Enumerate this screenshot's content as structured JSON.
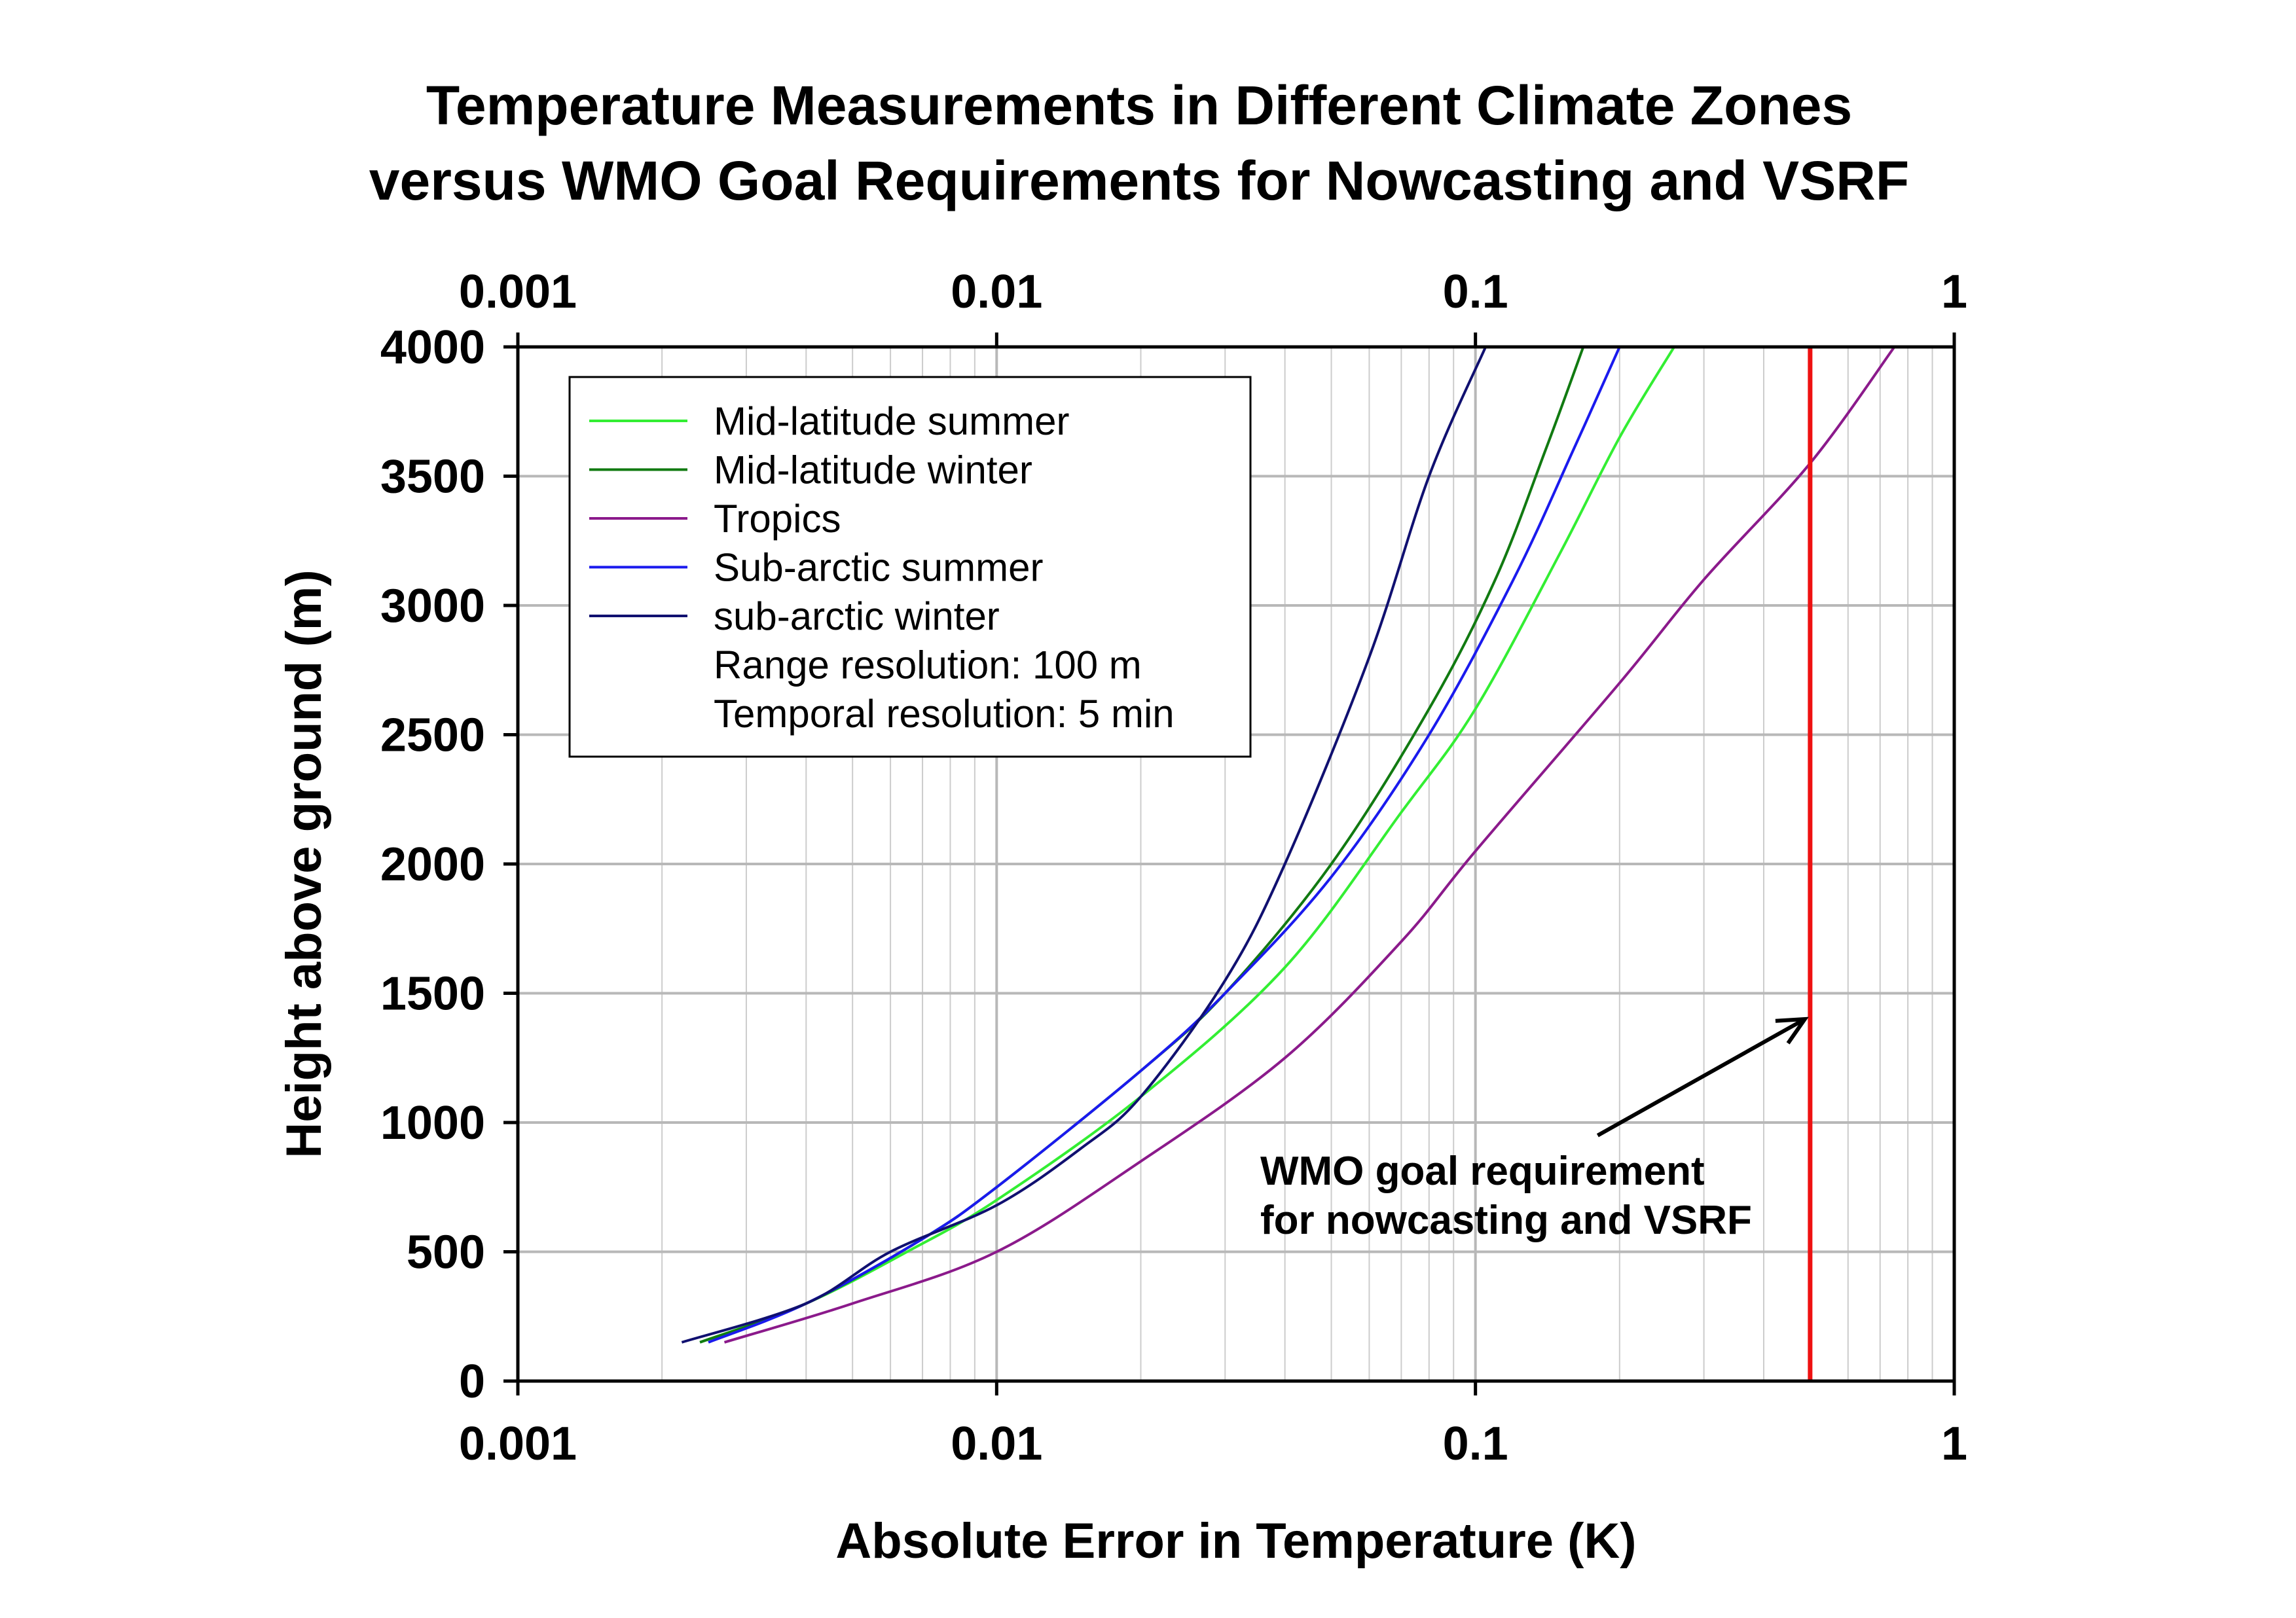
{
  "chart_data": {
    "type": "line",
    "title": [
      "Temperature Measurements in Different Climate Zones",
      "versus WMO Goal Requirements for Nowcasting and VSRF"
    ],
    "xlabel": "Absolute Error in Temperature (K)",
    "ylabel": "Height above ground (m)",
    "xscale": "log",
    "xlim": [
      0.001,
      1
    ],
    "ylim": [
      0,
      4000
    ],
    "x_ticks": [
      0.001,
      0.01,
      0.1,
      1
    ],
    "x_tick_labels": [
      "0.001",
      "0.01",
      "0.1",
      "1"
    ],
    "y_ticks": [
      0,
      500,
      1000,
      1500,
      2000,
      2500,
      3000,
      3500,
      4000
    ],
    "y_tick_labels": [
      "0",
      "500",
      "1000",
      "1500",
      "2000",
      "2500",
      "3000",
      "3500",
      "4000"
    ],
    "grid": true,
    "legend_position": "top-left",
    "legend_notes": [
      "Range resolution: 100 m",
      "Temporal resolution: 5 min"
    ],
    "series": [
      {
        "name": "Mid-latitude summer",
        "color": "#33ee33",
        "points": [
          [
            0.0024,
            150
          ],
          [
            0.004,
            300
          ],
          [
            0.0065,
            500
          ],
          [
            0.01,
            700
          ],
          [
            0.02,
            1100
          ],
          [
            0.04,
            1600
          ],
          [
            0.07,
            2200
          ],
          [
            0.1,
            2600
          ],
          [
            0.15,
            3200
          ],
          [
            0.2,
            3650
          ],
          [
            0.26,
            4000
          ]
        ]
      },
      {
        "name": "Mid-latitude winter",
        "color": "#117a11",
        "points": [
          [
            0.0024,
            150
          ],
          [
            0.004,
            300
          ],
          [
            0.007,
            550
          ],
          [
            0.01,
            750
          ],
          [
            0.02,
            1200
          ],
          [
            0.03,
            1500
          ],
          [
            0.05,
            2000
          ],
          [
            0.08,
            2600
          ],
          [
            0.11,
            3100
          ],
          [
            0.14,
            3600
          ],
          [
            0.168,
            4000
          ]
        ]
      },
      {
        "name": "Tropics",
        "color": "#8b1a8b",
        "points": [
          [
            0.0027,
            150
          ],
          [
            0.005,
            300
          ],
          [
            0.01,
            500
          ],
          [
            0.02,
            850
          ],
          [
            0.04,
            1250
          ],
          [
            0.07,
            1700
          ],
          [
            0.1,
            2050
          ],
          [
            0.2,
            2700
          ],
          [
            0.3,
            3100
          ],
          [
            0.5,
            3550
          ],
          [
            0.75,
            4000
          ]
        ]
      },
      {
        "name": "Sub-arctic summer",
        "color": "#1a1aee",
        "points": [
          [
            0.0025,
            150
          ],
          [
            0.004,
            300
          ],
          [
            0.007,
            550
          ],
          [
            0.01,
            750
          ],
          [
            0.02,
            1200
          ],
          [
            0.03,
            1500
          ],
          [
            0.05,
            1950
          ],
          [
            0.08,
            2500
          ],
          [
            0.12,
            3100
          ],
          [
            0.16,
            3600
          ],
          [
            0.2,
            4000
          ]
        ]
      },
      {
        "name": "sub-arctic winter",
        "color": "#101070",
        "points": [
          [
            0.0022,
            150
          ],
          [
            0.004,
            300
          ],
          [
            0.006,
            500
          ],
          [
            0.01,
            680
          ],
          [
            0.015,
            900
          ],
          [
            0.02,
            1100
          ],
          [
            0.03,
            1550
          ],
          [
            0.04,
            2000
          ],
          [
            0.06,
            2800
          ],
          [
            0.08,
            3500
          ],
          [
            0.105,
            4000
          ]
        ]
      }
    ],
    "reference_line": {
      "x": 0.5,
      "color": "#ee1111",
      "label": [
        "WMO goal requirement",
        "for nowcasting and VSRF"
      ],
      "arrow_to": [
        0.5,
        1400
      ],
      "arrow_from": [
        0.18,
        950
      ]
    }
  }
}
